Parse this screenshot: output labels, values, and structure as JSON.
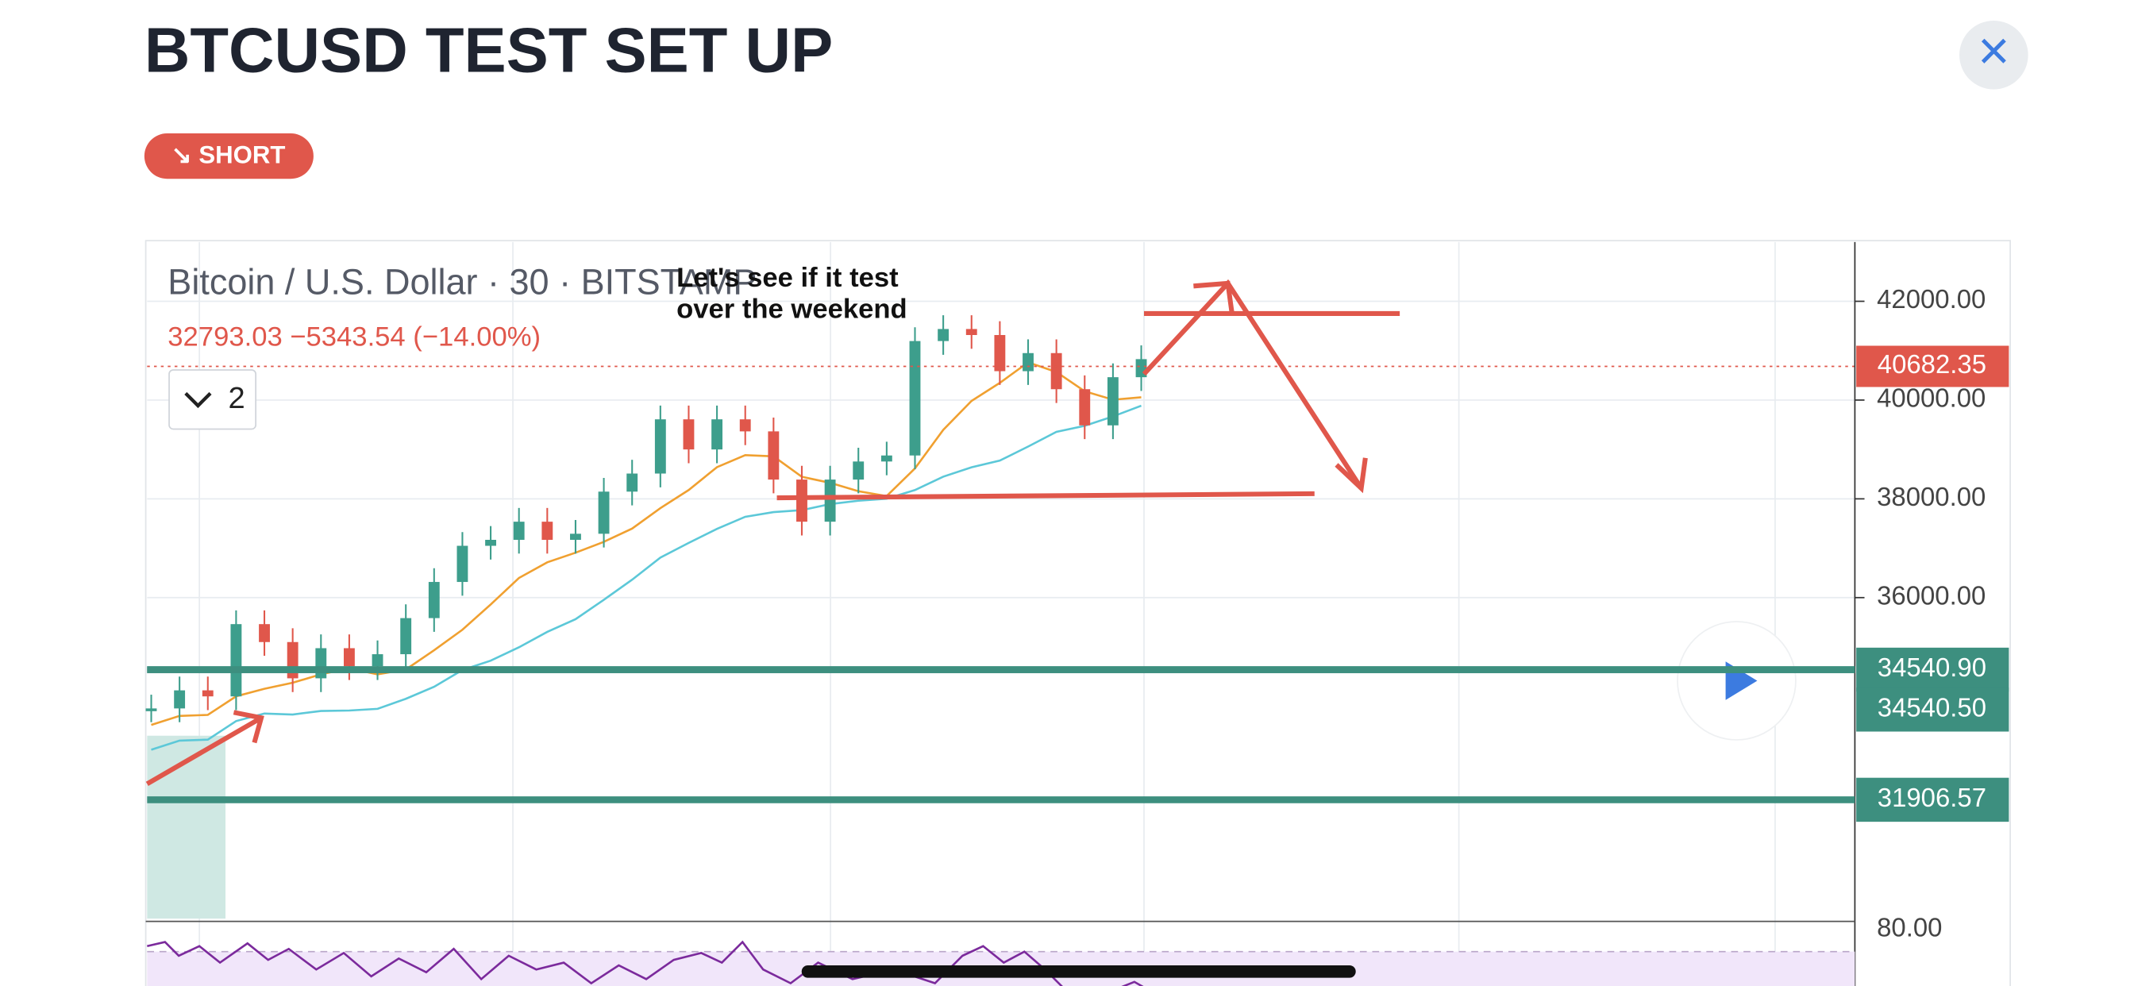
{
  "header": {
    "title": "BTCUSD TEST SET UP",
    "badge": "↘ SHORT",
    "close": "×"
  },
  "chart_data": {
    "type": "candlestick",
    "symbol": "Bitcoin / U.S. Dollar · 30 · BITSTAMP",
    "quote": "32793.03  −5343.54 (−14.00%)",
    "indicator_toggle": "2",
    "annotation": [
      "Let's see if it test",
      "over the weekend"
    ],
    "closes": [
      33756,
      34122,
      34000,
      35463,
      35100,
      34366,
      34976,
      34610,
      34854,
      35585,
      36317,
      37049,
      37170,
      37537,
      37170,
      37293,
      38146,
      38512,
      39610,
      39000,
      39610,
      39366,
      38390,
      37537,
      38390,
      38756,
      38878,
      41195,
      41439,
      41317,
      40585,
      40951,
      40220,
      39488,
      40463,
      40829
    ],
    "ylim": [
      29500,
      43200
    ],
    "yticks": [
      {
        "value": 42000,
        "label": "42000.00"
      },
      {
        "value": 40000,
        "label": "40000.00"
      },
      {
        "value": 38000,
        "label": "38000.00"
      },
      {
        "value": 36000,
        "label": "36000.00"
      }
    ],
    "current_price": {
      "value": 40682.35,
      "label": "40682.35",
      "color": "#e0574b"
    },
    "levels": [
      {
        "value": 34540.9,
        "label": "34540.90"
      },
      {
        "value": 34540.5,
        "label": "34540.50"
      },
      {
        "value": 31906.57,
        "label": "31906.57"
      }
    ],
    "level_color": "#3d8f7f",
    "up_color": "#3d9e8c",
    "down_color": "#e0574b",
    "grid": true,
    "rsi_label": {
      "value": 80,
      "label": "80.00"
    }
  }
}
